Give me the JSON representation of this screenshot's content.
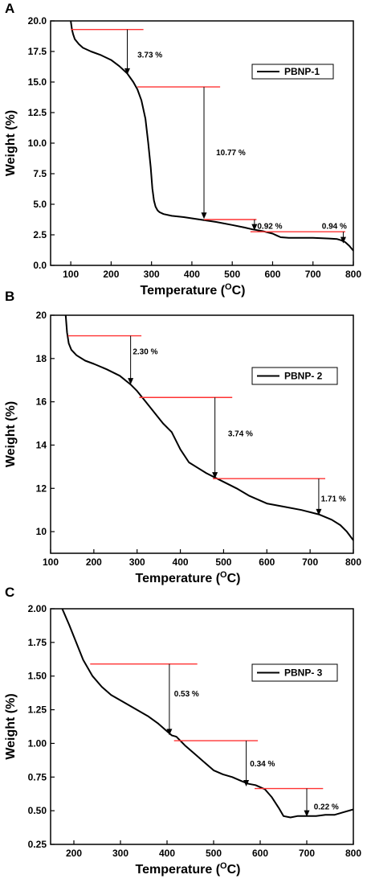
{
  "chart_data": [
    {
      "type": "line",
      "panel_label": "A",
      "xlabel": "Temperature (",
      "xlabel_sup": "O",
      "xlabel_end": "C)",
      "ylabel": "Weight (%)",
      "xlim": [
        50,
        800
      ],
      "ylim": [
        0,
        20
      ],
      "xticks": [
        "100",
        "200",
        "300",
        "400",
        "500",
        "600",
        "700",
        "800"
      ],
      "yticks": [
        "0.0",
        "2.5",
        "5.0",
        "7.5",
        "10.0",
        "12.5",
        "15.0",
        "17.5",
        "20.0"
      ],
      "legend": "PBNP-1",
      "legend_position": "top-right",
      "series": [
        {
          "name": "PBNP-1",
          "x": [
            100,
            103,
            106,
            110,
            120,
            130,
            150,
            175,
            200,
            220,
            240,
            255,
            265,
            275,
            285,
            292,
            298,
            302,
            306,
            310,
            315,
            320,
            330,
            350,
            380,
            400,
            430,
            460,
            500,
            530,
            550,
            575,
            600,
            610,
            620,
            640,
            700,
            740,
            760,
            770,
            780,
            790,
            800
          ],
          "y": [
            20,
            19.3,
            18.9,
            18.5,
            18.1,
            17.8,
            17.5,
            17.2,
            16.8,
            16.3,
            15.7,
            15.0,
            14.4,
            13.5,
            12.0,
            10.0,
            8.0,
            6.3,
            5.3,
            4.8,
            4.5,
            4.35,
            4.2,
            4.05,
            3.95,
            3.85,
            3.7,
            3.55,
            3.3,
            3.1,
            2.95,
            2.8,
            2.6,
            2.45,
            2.3,
            2.25,
            2.25,
            2.2,
            2.15,
            2.05,
            1.9,
            1.6,
            1.2
          ]
        }
      ],
      "steps": [
        {
          "label": "3.73 %",
          "x": 240,
          "y_top": 19.3,
          "y_bottom": 15.6,
          "line_x": [
            100,
            280
          ],
          "label_x": 265,
          "label_y": 17.0
        },
        {
          "label": "10.77 %",
          "x": 430,
          "y_top": 14.6,
          "y_bottom": 3.8,
          "line_x": [
            265,
            470
          ],
          "label_x": 460,
          "label_y": 9.0
        },
        {
          "label": "0.92 %",
          "x": 555,
          "y_top": 3.75,
          "y_bottom": 2.85,
          "line_x": [
            430,
            560
          ],
          "label_x": 562,
          "label_y": 3.0
        },
        {
          "label": "0.94 %",
          "x": 775,
          "y_top": 2.75,
          "y_bottom": 1.8,
          "line_x": [
            545,
            780
          ],
          "label_x": 722,
          "label_y": 3.0
        }
      ]
    },
    {
      "type": "line",
      "panel_label": "B",
      "xlabel": "Temperature (",
      "xlabel_sup": "O",
      "xlabel_end": "C)",
      "ylabel": "Weight (%)",
      "xlim": [
        100,
        800
      ],
      "ylim": [
        9,
        20
      ],
      "xticks": [
        "100",
        "200",
        "300",
        "400",
        "500",
        "600",
        "700",
        "800"
      ],
      "yticks": [
        "10",
        "12",
        "14",
        "16",
        "18",
        "20"
      ],
      "legend": "PBNP- 2",
      "legend_position": "top-right",
      "series": [
        {
          "name": "PBNP- 2",
          "x": [
            135,
            138,
            142,
            148,
            160,
            180,
            200,
            230,
            260,
            285,
            300,
            320,
            340,
            360,
            380,
            400,
            420,
            440,
            460,
            480,
            500,
            530,
            560,
            600,
            640,
            680,
            720,
            750,
            770,
            785,
            800
          ],
          "y": [
            20,
            19.2,
            18.7,
            18.4,
            18.15,
            17.9,
            17.75,
            17.5,
            17.2,
            16.8,
            16.5,
            16.0,
            15.5,
            15.0,
            14.6,
            13.8,
            13.2,
            12.95,
            12.7,
            12.5,
            12.3,
            12.0,
            11.65,
            11.3,
            11.15,
            11.0,
            10.8,
            10.55,
            10.3,
            10.0,
            9.6
          ]
        }
      ],
      "steps": [
        {
          "label": "2.30 %",
          "x": 285,
          "y_top": 19.05,
          "y_bottom": 16.8,
          "line_x": [
            140,
            310
          ],
          "label_x": 290,
          "label_y": 18.2
        },
        {
          "label": "3.74 %",
          "x": 480,
          "y_top": 16.2,
          "y_bottom": 12.45,
          "line_x": [
            305,
            520
          ],
          "label_x": 510,
          "label_y": 14.4
        },
        {
          "label": "1.71 %",
          "x": 720,
          "y_top": 12.45,
          "y_bottom": 10.75,
          "line_x": [
            475,
            735
          ],
          "label_x": 725,
          "label_y": 11.4
        }
      ]
    },
    {
      "type": "line",
      "panel_label": "C",
      "xlabel": "Temperature (",
      "xlabel_sup": "O",
      "xlabel_end": "C)",
      "ylabel": "Weight (%)",
      "xlim": [
        150,
        800
      ],
      "ylim": [
        0.25,
        2.0
      ],
      "xticks": [
        "200",
        "300",
        "400",
        "500",
        "600",
        "700",
        "800"
      ],
      "yticks": [
        "0.25",
        "0.50",
        "0.75",
        "1.00",
        "1.25",
        "1.50",
        "1.75",
        "2.00"
      ],
      "legend": "PBNP- 3",
      "legend_position": "top-right",
      "series": [
        {
          "name": "PBNP- 3",
          "x": [
            175,
            190,
            205,
            220,
            240,
            260,
            280,
            300,
            330,
            360,
            380,
            400,
            410,
            420,
            440,
            460,
            480,
            500,
            520,
            540,
            560,
            575,
            590,
            610,
            625,
            640,
            650,
            665,
            680,
            700,
            720,
            740,
            760,
            780,
            800
          ],
          "y": [
            2.0,
            1.88,
            1.75,
            1.62,
            1.5,
            1.42,
            1.36,
            1.32,
            1.26,
            1.2,
            1.15,
            1.09,
            1.06,
            1.05,
            0.98,
            0.92,
            0.86,
            0.8,
            0.77,
            0.75,
            0.72,
            0.7,
            0.69,
            0.66,
            0.6,
            0.52,
            0.46,
            0.45,
            0.46,
            0.46,
            0.46,
            0.47,
            0.47,
            0.49,
            0.51
          ]
        }
      ],
      "steps": [
        {
          "label": "0.53 %",
          "x": 405,
          "y_top": 1.59,
          "y_bottom": 1.06,
          "line_x": [
            235,
            465
          ],
          "label_x": 415,
          "label_y": 1.35
        },
        {
          "label": "0.34 %",
          "x": 570,
          "y_top": 1.02,
          "y_bottom": 0.68,
          "line_x": [
            415,
            595
          ],
          "label_x": 578,
          "label_y": 0.83
        },
        {
          "label": "0.22 %",
          "x": 700,
          "y_top": 0.665,
          "y_bottom": 0.455,
          "line_x": [
            588,
            735
          ],
          "label_x": 715,
          "label_y": 0.51
        }
      ]
    }
  ],
  "colors": {
    "curve": "#000000",
    "step_line": "#ff3333",
    "arrow": "#000000"
  }
}
